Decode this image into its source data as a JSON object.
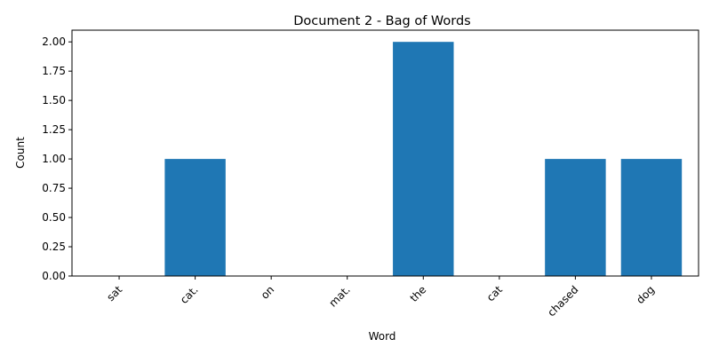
{
  "chart_data": {
    "type": "bar",
    "title": "Document 2 - Bag of Words",
    "xlabel": "Word",
    "ylabel": "Count",
    "categories": [
      "sat",
      "cat.",
      "on",
      "mat.",
      "the",
      "cat",
      "chased",
      "dog"
    ],
    "values": [
      0,
      1,
      0,
      0,
      2,
      0,
      1,
      1
    ],
    "ylim": [
      0,
      2.1
    ],
    "yticks": [
      "0.00",
      "0.25",
      "0.50",
      "0.75",
      "1.00",
      "1.25",
      "1.50",
      "1.75",
      "2.00"
    ],
    "grid": false,
    "bar_color": "#1f77b4"
  }
}
